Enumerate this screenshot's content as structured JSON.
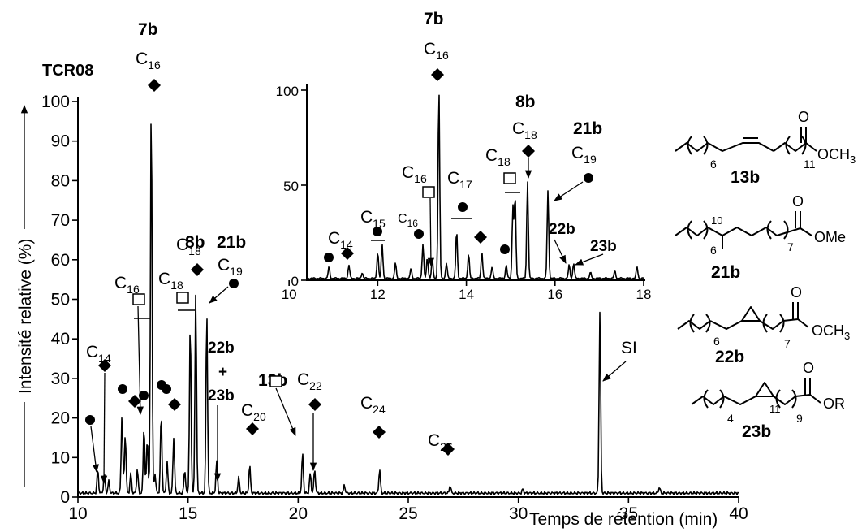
{
  "chart_data": [
    {
      "type": "line",
      "title": "TCR08",
      "xlabel": "Temps de rétention (min)",
      "ylabel": "Intensité relative (%)",
      "xlim": [
        10,
        40
      ],
      "ylim": [
        0,
        100
      ],
      "x_ticks": [
        "10",
        "15",
        "20",
        "25",
        "30",
        "35",
        "40"
      ],
      "y_ticks": [
        "0",
        "10",
        "20",
        "30",
        "40",
        "50",
        "60",
        "70",
        "80",
        "90",
        "100"
      ],
      "grid": false,
      "series": [
        {
          "peaks": [
            {
              "x": 10.9,
              "y": 6
            },
            {
              "x": 11.2,
              "y": 5
            },
            {
              "x": 11.4,
              "y": 3
            },
            {
              "x": 12.0,
              "y": 20
            },
            {
              "x": 12.15,
              "y": 15
            },
            {
              "x": 12.4,
              "y": 5
            },
            {
              "x": 12.7,
              "y": 6
            },
            {
              "x": 13.0,
              "y": 17
            },
            {
              "x": 13.15,
              "y": 14
            },
            {
              "x": 13.33,
              "y": 100
            },
            {
              "x": 13.5,
              "y": 5
            },
            {
              "x": 13.78,
              "y": 20
            },
            {
              "x": 14.05,
              "y": 8
            },
            {
              "x": 14.35,
              "y": 14
            },
            {
              "x": 14.85,
              "y": 6
            },
            {
              "x": 15.1,
              "y": 43
            },
            {
              "x": 15.35,
              "y": 51
            },
            {
              "x": 15.85,
              "y": 46
            },
            {
              "x": 16.3,
              "y": 8
            },
            {
              "x": 17.3,
              "y": 4
            },
            {
              "x": 17.8,
              "y": 7
            },
            {
              "x": 20.2,
              "y": 10
            },
            {
              "x": 20.55,
              "y": 5
            },
            {
              "x": 20.75,
              "y": 6
            },
            {
              "x": 22.1,
              "y": 2
            },
            {
              "x": 23.7,
              "y": 6
            },
            {
              "x": 26.9,
              "y": 2
            },
            {
              "x": 30.2,
              "y": 1
            },
            {
              "x": 33.7,
              "y": 46
            },
            {
              "x": 36.4,
              "y": 1.5
            }
          ]
        }
      ],
      "annotations": {
        "label_7b": "7b",
        "label_c16_top": "C",
        "sub_c16_top": "16",
        "label_8b": "8b",
        "label_c18_top": "C",
        "sub_c18_top": "18",
        "label_21b": "21b",
        "label_c19": "C",
        "sub_c19": "19",
        "label_c16_sq": "C",
        "sub_c16_sq": "16",
        "label_c18_sq": "C",
        "sub_c18_sq": "18",
        "label_c14": "C",
        "sub_c14": "14",
        "label_22b": "22b",
        "label_plus": "+",
        "label_23b": "23b",
        "label_13b": "13b",
        "label_c20": "C",
        "sub_c20": "20",
        "label_c22": "C",
        "sub_c22": "22",
        "label_c24": "C",
        "sub_c24": "24",
        "label_c26": "C",
        "sub_c26": "26",
        "label_si": "SI"
      }
    },
    {
      "type": "line",
      "title": "",
      "xlim": [
        10.4,
        18
      ],
      "ylim": [
        0,
        100
      ],
      "x_ticks": [
        "10",
        "12",
        "14",
        "16",
        "18"
      ],
      "y_ticks": [
        "0",
        "50",
        "100"
      ],
      "grid": false,
      "series": [
        {
          "peaks": [
            {
              "x": 10.9,
              "y": 6
            },
            {
              "x": 11.35,
              "y": 7
            },
            {
              "x": 11.65,
              "y": 3
            },
            {
              "x": 12.0,
              "y": 14
            },
            {
              "x": 12.1,
              "y": 18
            },
            {
              "x": 12.4,
              "y": 8
            },
            {
              "x": 12.75,
              "y": 5
            },
            {
              "x": 13.02,
              "y": 18
            },
            {
              "x": 13.12,
              "y": 11
            },
            {
              "x": 13.23,
              "y": 10
            },
            {
              "x": 13.38,
              "y": 100
            },
            {
              "x": 13.55,
              "y": 8
            },
            {
              "x": 13.78,
              "y": 25
            },
            {
              "x": 14.05,
              "y": 13
            },
            {
              "x": 14.35,
              "y": 14
            },
            {
              "x": 14.58,
              "y": 6
            },
            {
              "x": 14.9,
              "y": 7
            },
            {
              "x": 15.05,
              "y": 38
            },
            {
              "x": 15.1,
              "y": 43
            },
            {
              "x": 15.38,
              "y": 51
            },
            {
              "x": 15.84,
              "y": 46
            },
            {
              "x": 16.32,
              "y": 7
            },
            {
              "x": 16.42,
              "y": 8
            },
            {
              "x": 16.8,
              "y": 3
            },
            {
              "x": 17.35,
              "y": 4
            },
            {
              "x": 17.85,
              "y": 6
            }
          ]
        }
      ],
      "annotations": {
        "label_7b": "7b",
        "label_c16_top": "C",
        "sub_c16_top": "16",
        "label_8b": "8b",
        "label_c18_top": "C",
        "sub_c18_top": "18",
        "label_21b": "21b",
        "label_c19": "C",
        "sub_c19": "19",
        "label_c18_sq": "C",
        "sub_c18_sq": "18",
        "label_c16_sq": "C",
        "sub_c16_sq": "16",
        "label_c17": "C",
        "sub_c17": "17",
        "label_c15": "C",
        "sub_c15": "15",
        "label_c16_small": "C",
        "sub_c16_small": "16",
        "label_c14": "C",
        "sub_c14": "14",
        "label_22b": "22b",
        "label_23b": "23b"
      }
    }
  ],
  "structures": [
    {
      "name": "13b",
      "n1": "6",
      "n2": "11",
      "group": "OCH",
      "group_sub": "3"
    },
    {
      "name": "21b",
      "n1": "6",
      "n_branch": "10",
      "n2": "7",
      "group": "OMe"
    },
    {
      "name": "22b",
      "n1": "6",
      "n2": "7",
      "group": "OCH",
      "group_sub": "3"
    },
    {
      "name": "23b",
      "n1": "4",
      "n_ring": "11",
      "n2": "9",
      "group": "OR"
    }
  ],
  "icons": {
    "diamond": "filled-diamond",
    "circle": "filled-circle",
    "square": "open-square",
    "bar": "underline-bar"
  }
}
